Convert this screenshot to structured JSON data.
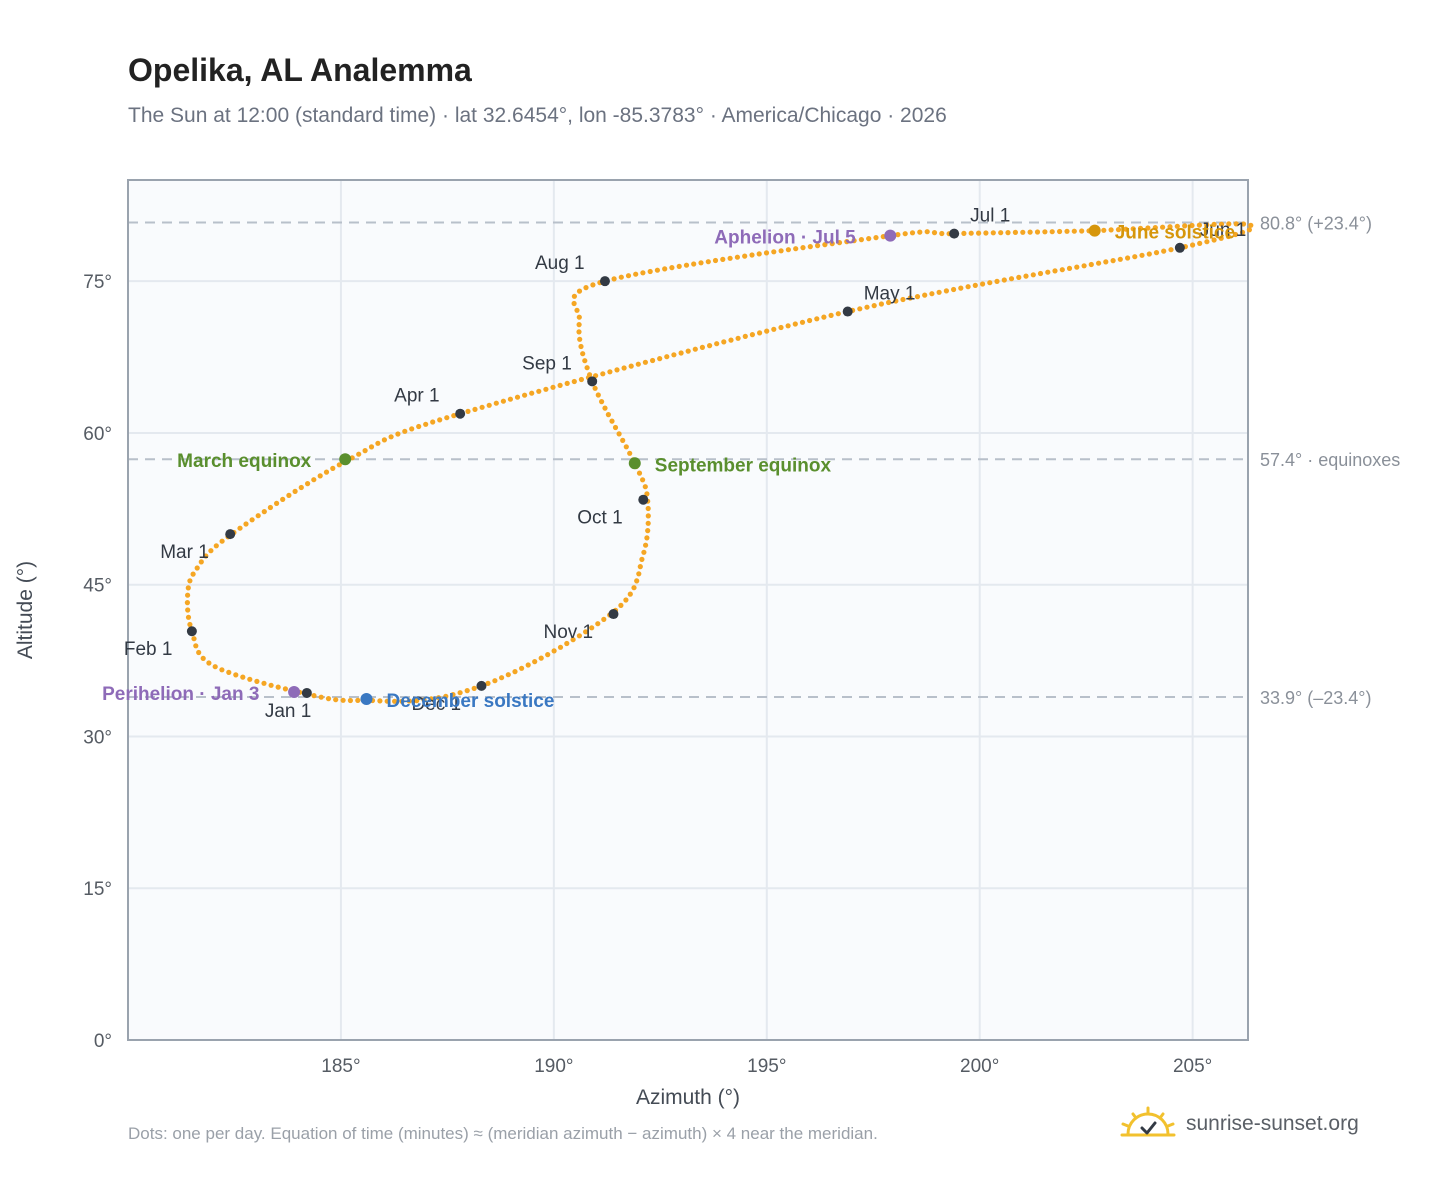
{
  "header": {
    "title": "Opelika, AL Analemma",
    "subtitle": "The Sun at 12:00 (standard time) · lat 32.6454°, lon -85.3783° · America/Chicago · 2026"
  },
  "footer": {
    "footnote": "Dots: one per day. Equation of time (minutes) ≈ (meridian azimuth − azimuth) × 4 near the meridian.",
    "brand": "sunrise-sunset.org"
  },
  "colors": {
    "curve": "#f5a623",
    "month_marker": "#333a44",
    "equinox": "#5a8f2e",
    "december_solstice": "#3a78c2",
    "june_solstice": "#d6960b",
    "apsis": "#8e6bb8",
    "reference_line": "#b8c0ca",
    "plot_background": "#f9fbfd",
    "grid": "#e4e9ef",
    "frame": "#9aa3ae"
  },
  "chart_data": {
    "type": "scatter",
    "xlabel": "Azimuth (°)",
    "ylabel": "Altitude (°)",
    "xlim": [
      180,
      206.3
    ],
    "ylim": [
      0,
      85
    ],
    "xticks": [
      185,
      190,
      195,
      200,
      205
    ],
    "yticks": [
      0,
      15,
      30,
      45,
      60,
      75
    ],
    "xtick_labels": [
      "185°",
      "190°",
      "195°",
      "200°",
      "205°"
    ],
    "ytick_labels": [
      "0°",
      "15°",
      "30°",
      "45°",
      "60°",
      "75°"
    ],
    "grid": true,
    "reference_lines": [
      {
        "y": 80.8,
        "label": "80.8° (+23.4°)"
      },
      {
        "y": 57.4,
        "label": "57.4° · equinoxes"
      },
      {
        "y": 33.9,
        "label": "33.9° (–23.4°)"
      }
    ],
    "path_anchors": [
      {
        "x": 184.2,
        "y": 34.2
      },
      {
        "x": 182.0,
        "y": 37.0
      },
      {
        "x": 181.5,
        "y": 40.4
      },
      {
        "x": 181.4,
        "y": 44.0
      },
      {
        "x": 181.6,
        "y": 46.5
      },
      {
        "x": 182.4,
        "y": 49.9
      },
      {
        "x": 185.2,
        "y": 57.4
      },
      {
        "x": 187.8,
        "y": 61.9
      },
      {
        "x": 196.9,
        "y": 72.0
      },
      {
        "x": 204.7,
        "y": 78.3
      },
      {
        "x": 206.3,
        "y": 80.6
      },
      {
        "x": 202.7,
        "y": 80.0
      },
      {
        "x": 199.4,
        "y": 79.7
      },
      {
        "x": 197.9,
        "y": 79.5
      },
      {
        "x": 191.2,
        "y": 75.0
      },
      {
        "x": 190.6,
        "y": 71.0
      },
      {
        "x": 190.9,
        "y": 65.1
      },
      {
        "x": 191.9,
        "y": 57.0
      },
      {
        "x": 192.2,
        "y": 53.4
      },
      {
        "x": 192.1,
        "y": 48.0
      },
      {
        "x": 191.4,
        "y": 42.3
      },
      {
        "x": 188.3,
        "y": 35.0
      },
      {
        "x": 185.6,
        "y": 33.6
      },
      {
        "x": 184.2,
        "y": 34.2
      }
    ],
    "month_markers": [
      {
        "label": "Jan 1",
        "x": 184.2,
        "y": 34.3
      },
      {
        "label": "Feb 1",
        "x": 181.5,
        "y": 40.4
      },
      {
        "label": "Mar 1",
        "x": 182.4,
        "y": 50.0
      },
      {
        "label": "Apr 1",
        "x": 187.8,
        "y": 61.9
      },
      {
        "label": "May 1",
        "x": 196.9,
        "y": 72.0
      },
      {
        "label": "Jun 1",
        "x": 204.7,
        "y": 78.3
      },
      {
        "label": "Jul 1",
        "x": 199.4,
        "y": 79.7
      },
      {
        "label": "Aug 1",
        "x": 191.2,
        "y": 75.0
      },
      {
        "label": "Sep 1",
        "x": 190.9,
        "y": 65.1
      },
      {
        "label": "Oct 1",
        "x": 192.1,
        "y": 53.4
      },
      {
        "label": "Nov 1",
        "x": 191.4,
        "y": 42.1
      },
      {
        "label": "Dec 1",
        "x": 188.3,
        "y": 35.0
      }
    ],
    "special_points": [
      {
        "label": "March equinox",
        "x": 185.1,
        "y": 57.4,
        "kind": "equinox"
      },
      {
        "label": "September equinox",
        "x": 191.9,
        "y": 57.0,
        "kind": "equinox"
      },
      {
        "label": "December solstice",
        "x": 185.6,
        "y": 33.7,
        "kind": "december_solstice"
      },
      {
        "label": "June solstice",
        "x": 202.7,
        "y": 80.0,
        "kind": "june_solstice"
      },
      {
        "label": "Perihelion · Jan 3",
        "x": 183.9,
        "y": 34.4,
        "kind": "apsis"
      },
      {
        "label": "Aphelion · Jul 5",
        "x": 197.9,
        "y": 79.5,
        "kind": "apsis"
      }
    ]
  }
}
